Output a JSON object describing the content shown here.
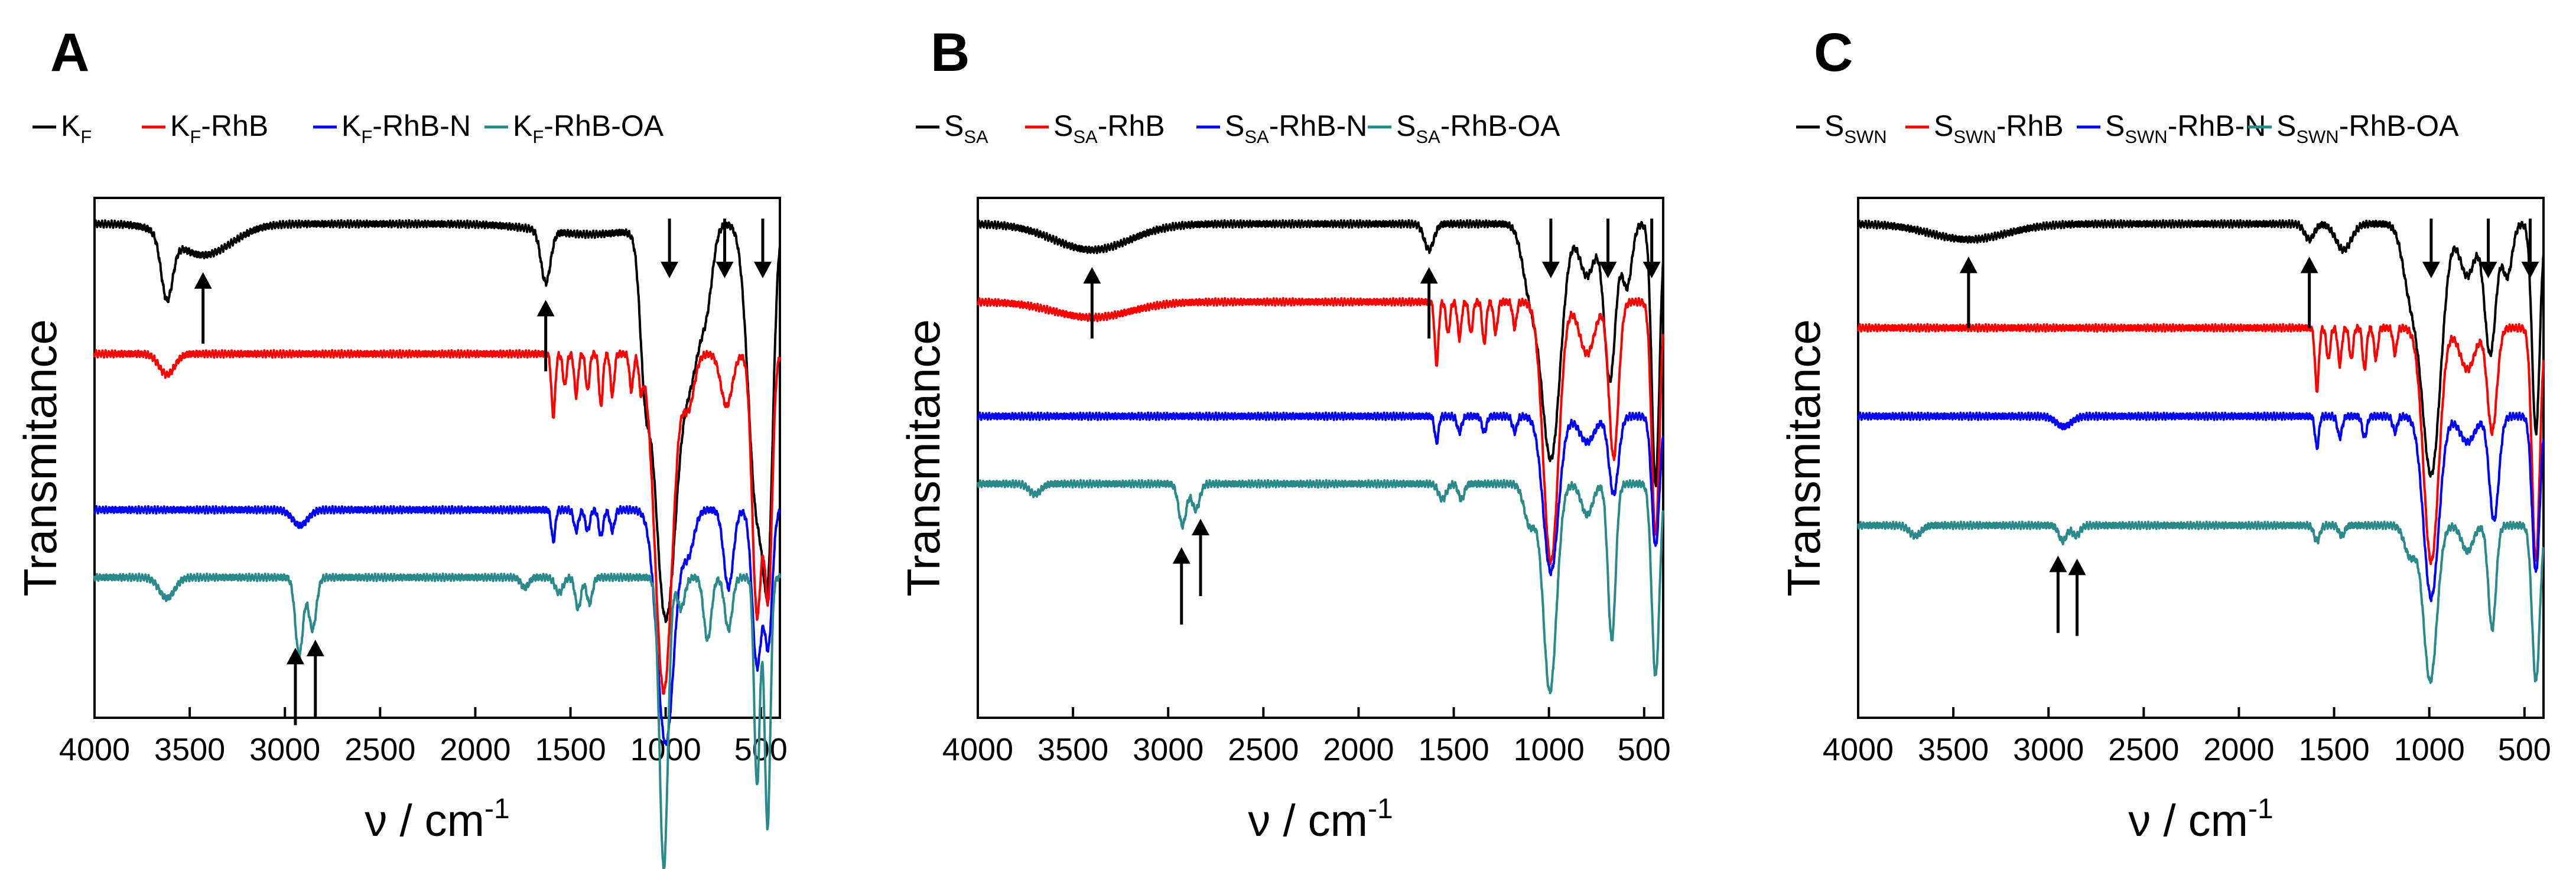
{
  "chart_data": [
    {
      "panel": "A",
      "type": "line",
      "title": "",
      "xlabel": "ν / cm",
      "xlabel_sup": "-1",
      "ylabel": "Transmitance",
      "xlim": [
        4000,
        400
      ],
      "x_ticks": [
        4000,
        3500,
        3000,
        2500,
        2000,
        1500,
        1000,
        500
      ],
      "y_ticks": [],
      "grid": false,
      "legend": "top",
      "series": [
        {
          "name": "K_F",
          "label_main": "K",
          "label_sub": "F",
          "label_suffix": "",
          "color": "#000000",
          "baseline": 0.95,
          "peaks": [
            [
              3620,
              0.12,
              30
            ],
            [
              3430,
              0.06,
              150
            ],
            [
              1630,
              0.1,
              25
            ],
            [
              1400,
              0.02,
              250
            ],
            [
              1110,
              0.2,
              25
            ],
            [
              1000,
              0.75,
              60
            ],
            [
              860,
              0.25,
              50
            ],
            [
              780,
              0.1,
              30
            ],
            [
              520,
              0.55,
              45
            ],
            [
              460,
              0.45,
              25
            ]
          ]
        },
        {
          "name": "K_F-RhB",
          "label_main": "K",
          "label_sub": "F",
          "label_suffix": "-RhB",
          "color": "#ff0000",
          "baseline": 0.7,
          "peaks": [
            [
              3620,
              0.04,
              40
            ],
            [
              1590,
              0.12,
              10
            ],
            [
              1530,
              0.06,
              10
            ],
            [
              1470,
              0.08,
              10
            ],
            [
              1410,
              0.07,
              10
            ],
            [
              1340,
              0.1,
              10
            ],
            [
              1280,
              0.08,
              10
            ],
            [
              1180,
              0.07,
              10
            ],
            [
              1130,
              0.06,
              10
            ],
            [
              1010,
              0.65,
              45
            ],
            [
              880,
              0.1,
              30
            ],
            [
              680,
              0.1,
              30
            ],
            [
              520,
              0.5,
              25
            ],
            [
              460,
              0.45,
              20
            ]
          ]
        },
        {
          "name": "K_F-RhB-N",
          "label_main": "K",
          "label_sub": "F",
          "label_suffix": "-RhB-N",
          "color": "#0000ff",
          "baseline": 0.4,
          "peaks": [
            [
              2920,
              0.03,
              40
            ],
            [
              1590,
              0.06,
              10
            ],
            [
              1470,
              0.04,
              12
            ],
            [
              1410,
              0.04,
              12
            ],
            [
              1340,
              0.05,
              12
            ],
            [
              1280,
              0.04,
              12
            ],
            [
              1000,
              0.45,
              45
            ],
            [
              880,
              0.08,
              30
            ],
            [
              670,
              0.15,
              25
            ],
            [
              520,
              0.3,
              25
            ],
            [
              460,
              0.25,
              20
            ]
          ]
        },
        {
          "name": "K_F-RhB-OA",
          "label_main": "K",
          "label_sub": "F",
          "label_suffix": "-RhB-OA",
          "color": "#2a8a8a",
          "baseline": 0.27,
          "peaks": [
            [
              3620,
              0.04,
              40
            ],
            [
              2925,
              0.15,
              20
            ],
            [
              2855,
              0.1,
              20
            ],
            [
              1740,
              0.02,
              20
            ],
            [
              1560,
              0.03,
              20
            ],
            [
              1460,
              0.06,
              15
            ],
            [
              1400,
              0.05,
              15
            ],
            [
              1010,
              0.56,
              22
            ],
            [
              920,
              0.06,
              20
            ],
            [
              780,
              0.12,
              20
            ],
            [
              670,
              0.1,
              20
            ],
            [
              520,
              0.4,
              15
            ],
            [
              465,
              0.48,
              15
            ]
          ]
        }
      ],
      "annotations": [
        {
          "x": 3430,
          "direction": "up"
        },
        {
          "x": 1630,
          "direction": "up"
        },
        {
          "x": 980,
          "direction": "down"
        },
        {
          "x": 690,
          "direction": "down"
        },
        {
          "x": 490,
          "direction": "down"
        },
        {
          "x": 2945,
          "direction": "up"
        },
        {
          "x": 2840,
          "direction": "up"
        }
      ]
    },
    {
      "panel": "B",
      "type": "line",
      "title": "",
      "xlabel": "ν / cm",
      "xlabel_sup": "-1",
      "ylabel": "Transmitance",
      "xlim": [
        4000,
        400
      ],
      "x_ticks": [
        4000,
        3500,
        3000,
        2500,
        2000,
        1500,
        1000,
        500
      ],
      "y_ticks": [],
      "grid": false,
      "legend": "top",
      "series": [
        {
          "name": "S_SA",
          "label_main": "S",
          "label_sub": "SA",
          "label_suffix": "",
          "color": "#000000",
          "baseline": 0.95,
          "peaks": [
            [
              3400,
              0.05,
              200
            ],
            [
              1630,
              0.05,
              25
            ],
            [
              1100,
              0.12,
              40
            ],
            [
              990,
              0.45,
              50
            ],
            [
              800,
              0.1,
              40
            ],
            [
              680,
              0.3,
              30
            ],
            [
              590,
              0.12,
              25
            ],
            [
              440,
              0.5,
              20
            ]
          ]
        },
        {
          "name": "S_SA-RhB",
          "label_main": "S",
          "label_sub": "SA",
          "label_suffix": "-RhB",
          "color": "#ff0000",
          "baseline": 0.8,
          "peaks": [
            [
              3400,
              0.03,
              200
            ],
            [
              1590,
              0.12,
              10
            ],
            [
              1530,
              0.06,
              10
            ],
            [
              1470,
              0.07,
              10
            ],
            [
              1410,
              0.06,
              10
            ],
            [
              1340,
              0.08,
              10
            ],
            [
              1280,
              0.06,
              10
            ],
            [
              1180,
              0.05,
              10
            ],
            [
              990,
              0.5,
              40
            ],
            [
              800,
              0.1,
              40
            ],
            [
              660,
              0.3,
              25
            ],
            [
              440,
              0.45,
              20
            ]
          ]
        },
        {
          "name": "S_SA-RhB-N",
          "label_main": "S",
          "label_sub": "SA",
          "label_suffix": "-RhB-N",
          "color": "#0000ff",
          "baseline": 0.58,
          "peaks": [
            [
              1590,
              0.05,
              10
            ],
            [
              1470,
              0.03,
              12
            ],
            [
              1340,
              0.03,
              12
            ],
            [
              1180,
              0.03,
              12
            ],
            [
              990,
              0.3,
              40
            ],
            [
              800,
              0.05,
              40
            ],
            [
              660,
              0.15,
              25
            ],
            [
              440,
              0.25,
              20
            ]
          ]
        },
        {
          "name": "S_SA-RhB-OA",
          "label_main": "S",
          "label_sub": "SA",
          "label_suffix": "-RhB-OA",
          "color": "#2a8a8a",
          "baseline": 0.45,
          "peaks": [
            [
              3700,
              0.02,
              30
            ],
            [
              2925,
              0.08,
              20
            ],
            [
              2855,
              0.05,
              20
            ],
            [
              1560,
              0.03,
              20
            ],
            [
              1460,
              0.03,
              15
            ],
            [
              1100,
              0.08,
              30
            ],
            [
              995,
              0.4,
              35
            ],
            [
              800,
              0.06,
              30
            ],
            [
              670,
              0.3,
              20
            ],
            [
              440,
              0.37,
              20
            ]
          ]
        }
      ],
      "annotations": [
        {
          "x": 3400,
          "direction": "up"
        },
        {
          "x": 1630,
          "direction": "up"
        },
        {
          "x": 990,
          "direction": "down"
        },
        {
          "x": 690,
          "direction": "down"
        },
        {
          "x": 460,
          "direction": "down"
        },
        {
          "x": 2930,
          "direction": "up"
        },
        {
          "x": 2830,
          "direction": "up"
        }
      ]
    },
    {
      "panel": "C",
      "type": "line",
      "title": "",
      "xlabel": "ν / cm",
      "xlabel_sup": "-1",
      "ylabel": "Transmitance",
      "xlim": [
        4000,
        400
      ],
      "x_ticks": [
        4000,
        3500,
        3000,
        2500,
        2000,
        1500,
        1000,
        500
      ],
      "y_ticks": [],
      "grid": false,
      "legend": "top",
      "series": [
        {
          "name": "S_SWN",
          "label_main": "S",
          "label_sub": "SWN",
          "label_suffix": "",
          "color": "#000000",
          "baseline": 0.95,
          "peaks": [
            [
              3420,
              0.03,
              200
            ],
            [
              1630,
              0.03,
              25
            ],
            [
              1450,
              0.05,
              40
            ],
            [
              1100,
              0.12,
              40
            ],
            [
              990,
              0.48,
              50
            ],
            [
              800,
              0.1,
              40
            ],
            [
              680,
              0.25,
              30
            ],
            [
              590,
              0.1,
              25
            ],
            [
              440,
              0.4,
              20
            ]
          ]
        },
        {
          "name": "S_SWN-RhB",
          "label_main": "S",
          "label_sub": "SWN",
          "label_suffix": "-RhB",
          "color": "#ff0000",
          "baseline": 0.75,
          "peaks": [
            [
              1590,
              0.12,
              10
            ],
            [
              1530,
              0.06,
              10
            ],
            [
              1470,
              0.07,
              10
            ],
            [
              1410,
              0.06,
              10
            ],
            [
              1340,
              0.08,
              10
            ],
            [
              1280,
              0.06,
              10
            ],
            [
              1180,
              0.05,
              10
            ],
            [
              990,
              0.45,
              40
            ],
            [
              800,
              0.08,
              40
            ],
            [
              670,
              0.2,
              25
            ],
            [
              440,
              0.45,
              20
            ]
          ]
        },
        {
          "name": "S_SWN-RhB-N",
          "label_main": "S",
          "label_sub": "SWN",
          "label_suffix": "-RhB-N",
          "color": "#0000ff",
          "baseline": 0.58,
          "peaks": [
            [
              2920,
              0.02,
              40
            ],
            [
              1590,
              0.06,
              10
            ],
            [
              1470,
              0.04,
              12
            ],
            [
              1340,
              0.04,
              12
            ],
            [
              1180,
              0.03,
              12
            ],
            [
              990,
              0.35,
              40
            ],
            [
              800,
              0.05,
              40
            ],
            [
              660,
              0.2,
              25
            ],
            [
              440,
              0.3,
              20
            ]
          ]
        },
        {
          "name": "S_SWN-RhB-OA",
          "label_main": "S",
          "label_sub": "SWN",
          "label_suffix": "-RhB-OA",
          "color": "#2a8a8a",
          "baseline": 0.37,
          "peaks": [
            [
              3700,
              0.02,
              30
            ],
            [
              2925,
              0.03,
              20
            ],
            [
              2855,
              0.02,
              20
            ],
            [
              1590,
              0.03,
              15
            ],
            [
              1460,
              0.02,
              15
            ],
            [
              1100,
              0.06,
              30
            ],
            [
              995,
              0.3,
              35
            ],
            [
              800,
              0.05,
              30
            ],
            [
              670,
              0.2,
              20
            ],
            [
              440,
              0.3,
              20
            ]
          ]
        }
      ],
      "annotations": [
        {
          "x": 3420,
          "direction": "up"
        },
        {
          "x": 1630,
          "direction": "up"
        },
        {
          "x": 990,
          "direction": "down"
        },
        {
          "x": 690,
          "direction": "down"
        },
        {
          "x": 470,
          "direction": "down"
        },
        {
          "x": 2950,
          "direction": "up"
        },
        {
          "x": 2850,
          "direction": "up"
        }
      ]
    }
  ]
}
